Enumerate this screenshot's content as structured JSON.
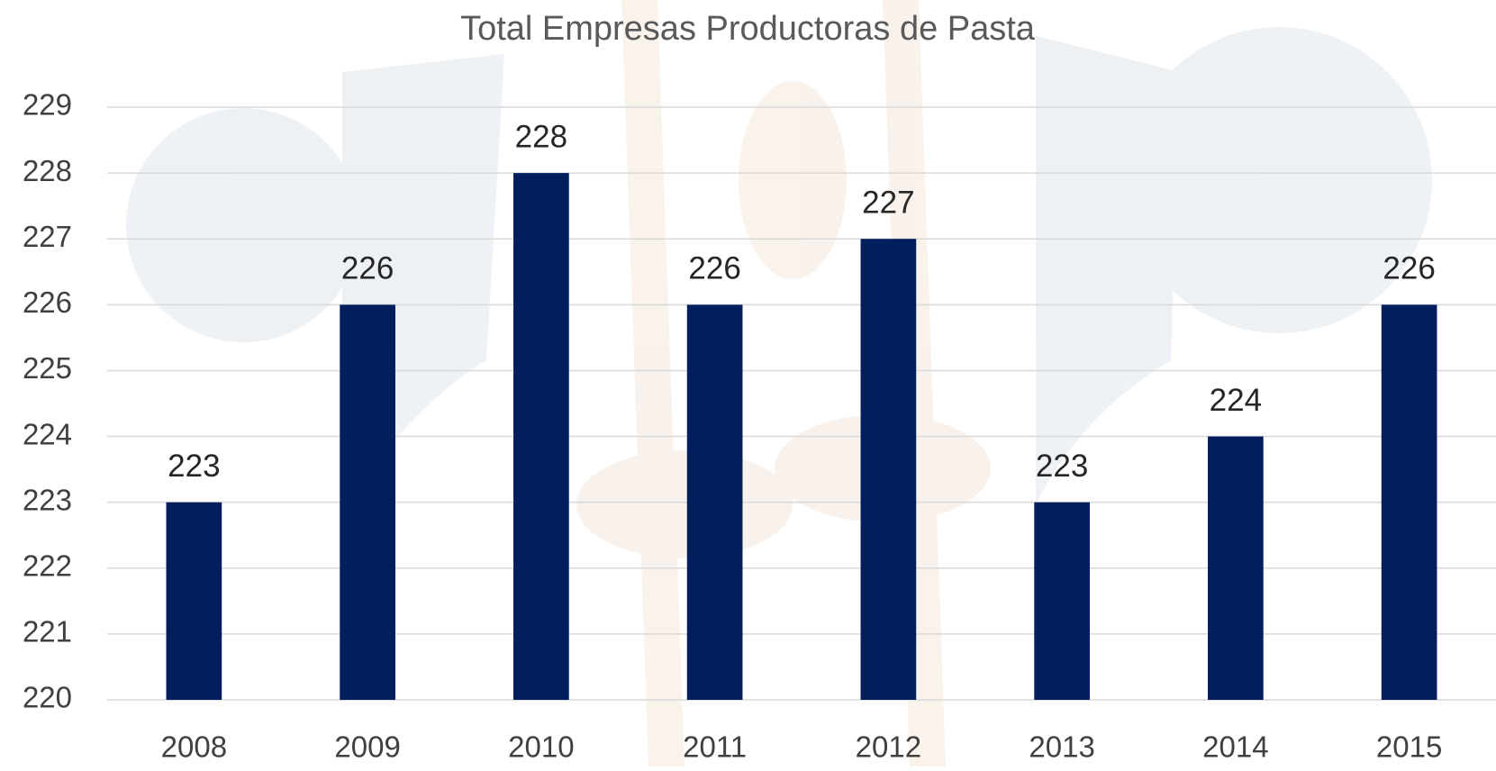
{
  "chart_data": {
    "type": "bar",
    "title": "Total Empresas Productoras de Pasta",
    "categories": [
      "2008",
      "2009",
      "2010",
      "2011",
      "2012",
      "2013",
      "2014",
      "2015"
    ],
    "values": [
      223,
      226,
      228,
      226,
      227,
      223,
      224,
      226
    ],
    "color": "#021e5c",
    "ylim": [
      220,
      229
    ],
    "yticks": [
      220,
      221,
      222,
      223,
      224,
      225,
      226,
      227,
      228,
      229
    ],
    "grid": true,
    "data_labels": true
  }
}
